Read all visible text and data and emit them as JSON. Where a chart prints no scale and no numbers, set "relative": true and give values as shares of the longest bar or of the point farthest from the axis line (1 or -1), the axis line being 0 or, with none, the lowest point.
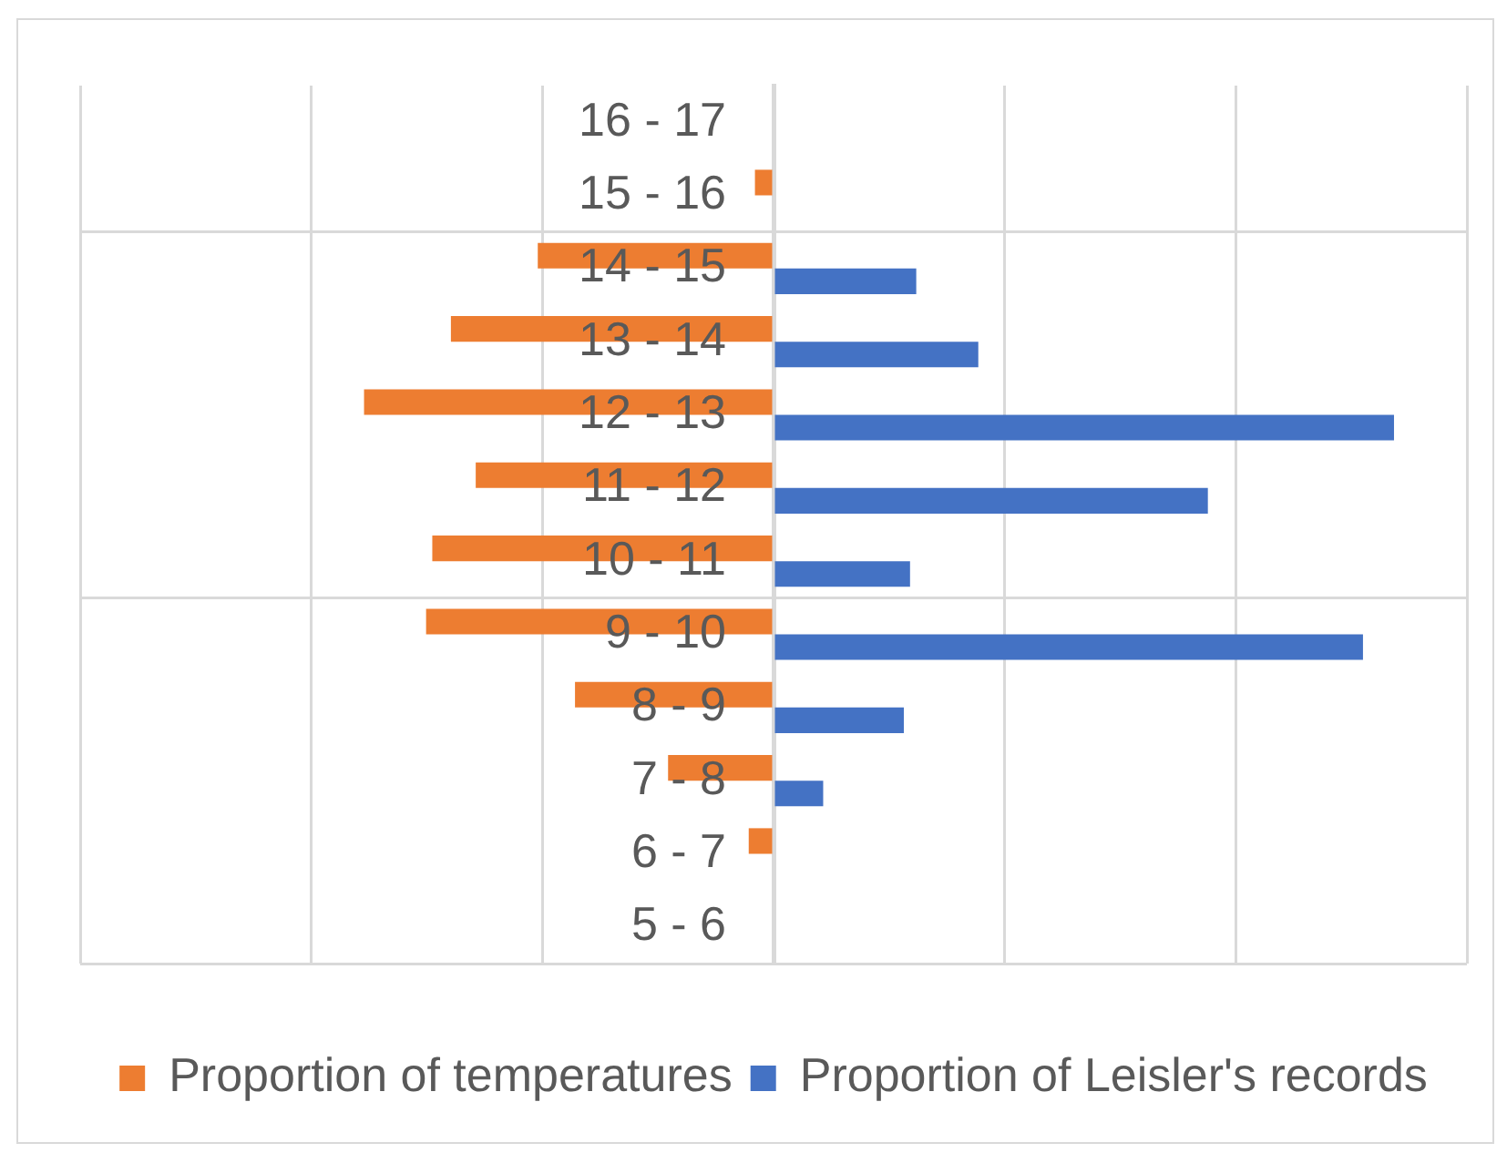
{
  "chart_data": {
    "type": "bar",
    "orientation": "horizontal",
    "relative": true,
    "categories": [
      "16 - 17",
      "15 - 16",
      "14 - 15",
      "13 - 14",
      "12 - 13",
      "11 - 12",
      "10 - 11",
      "9 - 10",
      "8 - 9",
      "7 - 8",
      "6 - 7",
      "5 - 6"
    ],
    "series": [
      {
        "name": "Proportion of temperatures",
        "color": "#ed7d31",
        "values": [
          0,
          -0.03,
          -0.38,
          -0.52,
          -0.66,
          -0.48,
          -0.55,
          -0.56,
          -0.32,
          -0.17,
          -0.04,
          0
        ]
      },
      {
        "name": "Proportion of Leisler's records",
        "color": "#4472c4",
        "values": [
          0,
          0,
          0.23,
          0.33,
          1,
          0.7,
          0.22,
          0.95,
          0.21,
          0.08,
          0,
          0
        ]
      }
    ],
    "grid": true,
    "legend": "bottom",
    "tick_labels": "y"
  }
}
